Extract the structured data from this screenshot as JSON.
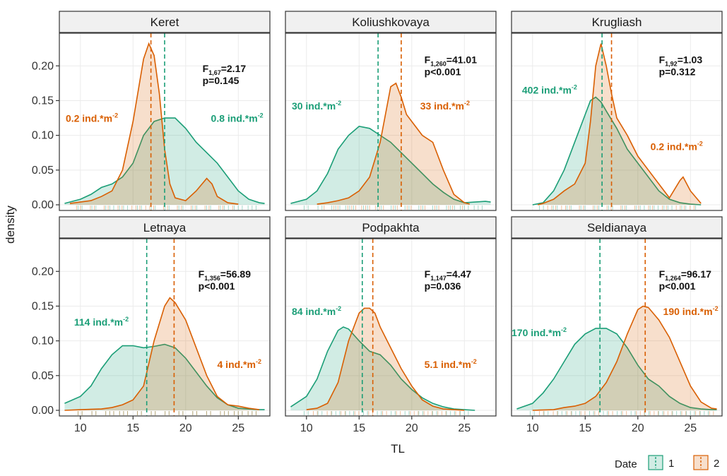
{
  "chart_data": {
    "type": "area",
    "xlabel": "TL",
    "ylabel": "density",
    "xlim": [
      8,
      28
    ],
    "ylim": [
      0,
      0.245
    ],
    "x_ticks": [
      10,
      15,
      20,
      25
    ],
    "y_ticks": [
      0.0,
      0.05,
      0.1,
      0.15,
      0.2
    ],
    "y_tick_labels": [
      "0.00",
      "0.05",
      "0.10",
      "0.15",
      "0.20"
    ],
    "colors": {
      "1": "#1b9e77",
      "2": "#d95f02"
    },
    "legend": {
      "title": "Date",
      "entries": [
        "1",
        "2"
      ],
      "placement": "bottom-right"
    },
    "panels": [
      {
        "title": "Keret",
        "stat_main": "F",
        "stat_sub": "1,67",
        "stat_value": "=2.17",
        "p_text": "p=0.145",
        "mean1": 18.0,
        "mean2": 16.7,
        "label1_main": "0.8 ind.*m",
        "label2_main": "0.2 ind.*m",
        "label_sup": "-2",
        "series": [
          {
            "name": "1",
            "x": [
              8.5,
              10,
              11,
              12,
              13,
              14,
              15,
              16,
              17,
              18,
              19,
              20,
              21,
              22,
              23,
              24,
              25,
              26,
              27,
              27.5
            ],
            "y": [
              0.002,
              0.008,
              0.015,
              0.025,
              0.03,
              0.04,
              0.06,
              0.1,
              0.12,
              0.125,
              0.125,
              0.11,
              0.09,
              0.075,
              0.06,
              0.04,
              0.02,
              0.008,
              0.003,
              0.002
            ]
          },
          {
            "name": "2",
            "x": [
              9,
              10,
              11,
              12,
              13,
              14,
              15,
              16,
              16.5,
              17,
              17.5,
              18,
              18.5,
              19,
              20,
              21,
              22,
              22.5,
              23,
              24,
              25
            ],
            "y": [
              0.002,
              0.004,
              0.006,
              0.012,
              0.02,
              0.05,
              0.12,
              0.21,
              0.232,
              0.215,
              0.16,
              0.08,
              0.03,
              0.01,
              0.006,
              0.02,
              0.038,
              0.03,
              0.012,
              0.003,
              0.001
            ]
          }
        ]
      },
      {
        "title": "Koliushkovaya",
        "stat_main": "F",
        "stat_sub": "1,260",
        "stat_value": "=41.01",
        "p_text": "p<0.001",
        "mean1": 16.8,
        "mean2": 19.0,
        "label1_main": "30 ind.*m",
        "label2_main": "33 ind.*m",
        "label_sup": "-2",
        "series": [
          {
            "name": "1",
            "x": [
              8.5,
              10,
              11,
              12,
              13,
              14,
              15,
              16,
              17,
              18,
              19,
              20,
              21,
              22,
              23,
              24,
              25,
              26,
              27,
              27.5
            ],
            "y": [
              0.002,
              0.008,
              0.02,
              0.045,
              0.08,
              0.1,
              0.113,
              0.11,
              0.1,
              0.09,
              0.075,
              0.06,
              0.045,
              0.03,
              0.018,
              0.008,
              0.003,
              0.004,
              0.005,
              0.004
            ]
          },
          {
            "name": "2",
            "x": [
              11,
              12,
              13,
              14,
              15,
              16,
              17,
              17.5,
              18,
              18.5,
              19,
              19.5,
              20,
              21,
              22,
              23,
              24,
              25,
              25.5
            ],
            "y": [
              0.001,
              0.003,
              0.006,
              0.01,
              0.02,
              0.04,
              0.09,
              0.13,
              0.17,
              0.175,
              0.155,
              0.13,
              0.12,
              0.1,
              0.09,
              0.05,
              0.015,
              0.003,
              0.001
            ]
          }
        ]
      },
      {
        "title": "Krugliash",
        "stat_main": "F",
        "stat_sub": "1,92",
        "stat_value": "=1.03",
        "p_text": "p=0.312",
        "mean1": 16.6,
        "mean2": 17.5,
        "label1_main": "402 ind.*m",
        "label2_main": "0.2 ind.*m",
        "label_sup": "-2",
        "series": [
          {
            "name": "1",
            "x": [
              10,
              11,
              12,
              13,
              14,
              15,
              15.5,
              16,
              16.5,
              17,
              18,
              19,
              20,
              21,
              22,
              23,
              24,
              25,
              26
            ],
            "y": [
              0.0,
              0.003,
              0.02,
              0.05,
              0.09,
              0.13,
              0.15,
              0.155,
              0.148,
              0.135,
              0.11,
              0.08,
              0.06,
              0.04,
              0.02,
              0.008,
              0.003,
              0.001,
              0.0
            ]
          },
          {
            "name": "2",
            "x": [
              10.5,
              11,
              12,
              13,
              14,
              15,
              15.5,
              16,
              16.5,
              17,
              17.5,
              18,
              19,
              20,
              21,
              22,
              23,
              24,
              24.3,
              25,
              26
            ],
            "y": [
              0.0,
              0.002,
              0.008,
              0.02,
              0.03,
              0.06,
              0.12,
              0.2,
              0.232,
              0.2,
              0.16,
              0.125,
              0.1,
              0.07,
              0.05,
              0.03,
              0.01,
              0.035,
              0.04,
              0.02,
              0.002
            ]
          }
        ]
      },
      {
        "title": "Letnaya",
        "stat_main": "F",
        "stat_sub": "1,356",
        "stat_value": "=56.89",
        "p_text": "p<0.001",
        "mean1": 16.3,
        "mean2": 18.9,
        "label1_main": "114 ind.*m",
        "label2_main": "4 ind.*m",
        "label_sup": "-2",
        "series": [
          {
            "name": "1",
            "x": [
              8.5,
              10,
              11,
              12,
              13,
              14,
              15,
              16,
              17,
              18,
              19,
              20,
              21,
              22,
              23,
              24,
              25,
              26,
              27,
              27.5
            ],
            "y": [
              0.01,
              0.02,
              0.035,
              0.06,
              0.08,
              0.093,
              0.093,
              0.09,
              0.092,
              0.095,
              0.09,
              0.075,
              0.055,
              0.035,
              0.018,
              0.008,
              0.003,
              0.002,
              0.001,
              0.001
            ]
          },
          {
            "name": "2",
            "x": [
              8.5,
              10,
              12,
              13,
              14,
              15,
              16,
              17,
              18,
              18.5,
              19,
              20,
              21,
              22,
              23,
              24,
              25,
              26,
              27
            ],
            "y": [
              0.0,
              0.001,
              0.002,
              0.004,
              0.008,
              0.015,
              0.035,
              0.1,
              0.15,
              0.162,
              0.155,
              0.13,
              0.09,
              0.05,
              0.02,
              0.008,
              0.006,
              0.003,
              0.001
            ]
          }
        ]
      },
      {
        "title": "Podpakhta",
        "stat_main": "F",
        "stat_sub": "1,147",
        "stat_value": "=4.47",
        "p_text": "p=0.036",
        "mean1": 15.3,
        "mean2": 16.3,
        "label1_main": "84 ind.*m",
        "label2_main": "5.1 ind.*m",
        "label_sup": "-2",
        "series": [
          {
            "name": "1",
            "x": [
              8.5,
              10,
              11,
              12,
              13,
              13.5,
              14,
              15,
              16,
              17,
              18,
              19,
              20,
              21,
              22,
              23,
              24,
              25,
              26
            ],
            "y": [
              0.005,
              0.02,
              0.045,
              0.085,
              0.115,
              0.12,
              0.117,
              0.1,
              0.085,
              0.08,
              0.065,
              0.045,
              0.03,
              0.018,
              0.01,
              0.005,
              0.002,
              0.001,
              0.0
            ]
          },
          {
            "name": "2",
            "x": [
              10,
              11,
              12,
              13,
              14,
              15,
              15.5,
              16,
              16.5,
              17,
              18,
              19,
              20,
              21,
              22,
              23,
              24,
              25
            ],
            "y": [
              0.001,
              0.003,
              0.01,
              0.04,
              0.1,
              0.14,
              0.147,
              0.147,
              0.14,
              0.12,
              0.09,
              0.06,
              0.035,
              0.015,
              0.006,
              0.002,
              0.001,
              0.0
            ]
          }
        ]
      },
      {
        "title": "Seldianaya",
        "stat_main": "F",
        "stat_sub": "1,264",
        "stat_value": "=96.17",
        "p_text": "p<0.001",
        "mean1": 16.4,
        "mean2": 20.7,
        "label1_main": "170 ind.*m",
        "label2_main": "190 ind.*m",
        "label_sup": "-2",
        "series": [
          {
            "name": "1",
            "x": [
              8.5,
              10,
              11,
              12,
              13,
              14,
              15,
              16,
              17,
              18,
              19,
              20,
              21,
              22,
              23,
              24,
              25,
              26,
              27,
              27.5
            ],
            "y": [
              0.002,
              0.01,
              0.025,
              0.045,
              0.07,
              0.095,
              0.11,
              0.118,
              0.118,
              0.11,
              0.09,
              0.065,
              0.045,
              0.035,
              0.02,
              0.01,
              0.004,
              0.002,
              0.001,
              0.001
            ]
          },
          {
            "name": "2",
            "x": [
              10,
              12,
              13,
              14,
              15,
              16,
              17,
              18,
              19,
              20,
              20.5,
              21,
              22,
              23,
              24,
              25,
              26,
              27,
              27.5
            ],
            "y": [
              0.0,
              0.001,
              0.004,
              0.006,
              0.01,
              0.02,
              0.04,
              0.07,
              0.11,
              0.145,
              0.15,
              0.148,
              0.13,
              0.105,
              0.07,
              0.035,
              0.012,
              0.003,
              0.002
            ]
          }
        ]
      }
    ]
  }
}
